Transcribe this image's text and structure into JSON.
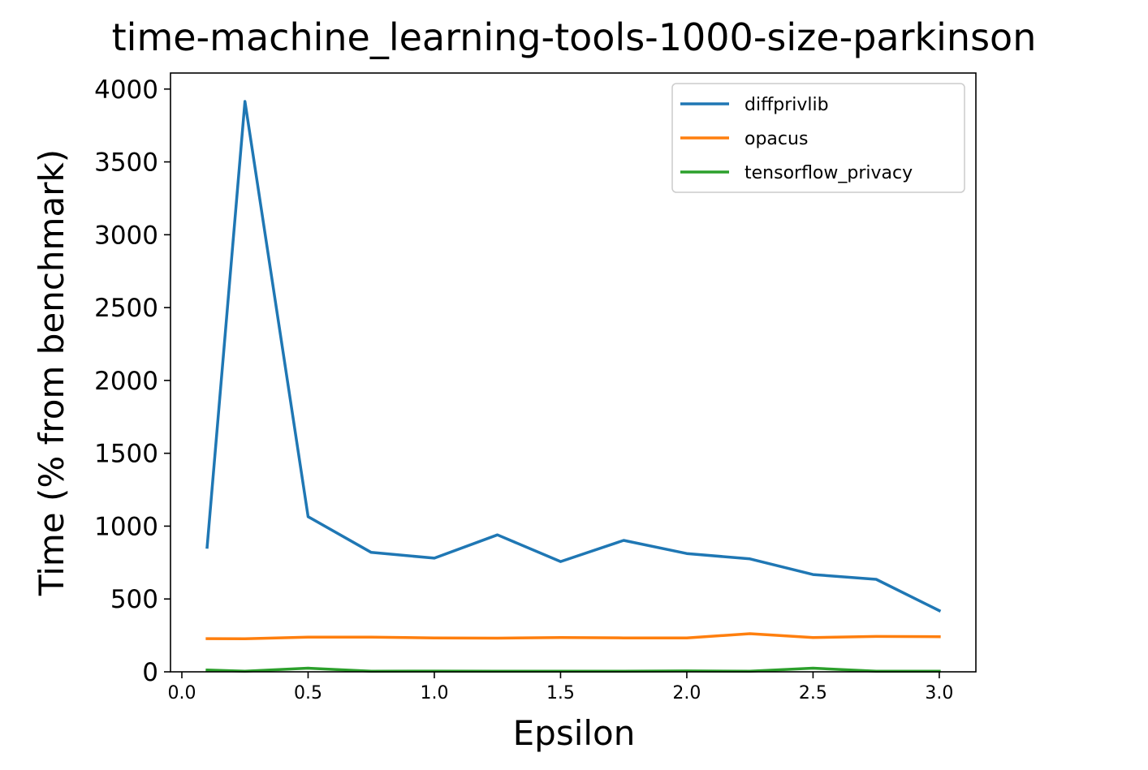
{
  "chart_data": {
    "type": "line",
    "title": "time-machine_learning-tools-1000-size-parkinson",
    "xlabel": "Epsilon",
    "ylabel": "Time (% from benchmark)",
    "xlim": [
      -0.045,
      3.145
    ],
    "ylim": [
      0,
      4110
    ],
    "xticks": [
      0.0,
      0.5,
      1.0,
      1.5,
      2.0,
      2.5,
      3.0
    ],
    "xtick_labels": [
      "0.0",
      "0.5",
      "1.0",
      "1.5",
      "2.0",
      "2.5",
      "3.0"
    ],
    "yticks": [
      0,
      500,
      1000,
      1500,
      2000,
      2500,
      3000,
      3500,
      4000
    ],
    "ytick_labels": [
      "0",
      "500",
      "1000",
      "1500",
      "2000",
      "2500",
      "3000",
      "3500",
      "4000"
    ],
    "legend_position": "top-right",
    "x": [
      0.1,
      0.25,
      0.5,
      0.75,
      1.0,
      1.25,
      1.5,
      1.75,
      2.0,
      2.25,
      2.5,
      2.75,
      3.0
    ],
    "series": [
      {
        "name": "diffprivlib",
        "color": "#1f77b4",
        "values": [
          855,
          3915,
          1065,
          820,
          780,
          940,
          757,
          902,
          812,
          775,
          668,
          635,
          420
        ]
      },
      {
        "name": "opacus",
        "color": "#ff7f0e",
        "values": [
          228,
          227,
          238,
          238,
          233,
          231,
          235,
          233,
          232,
          262,
          235,
          243,
          241
        ]
      },
      {
        "name": "tensorflow_privacy",
        "color": "#2ca02c",
        "values": [
          12,
          4,
          25,
          4,
          5,
          4,
          4,
          4,
          6,
          4,
          25,
          4,
          4
        ]
      }
    ]
  }
}
